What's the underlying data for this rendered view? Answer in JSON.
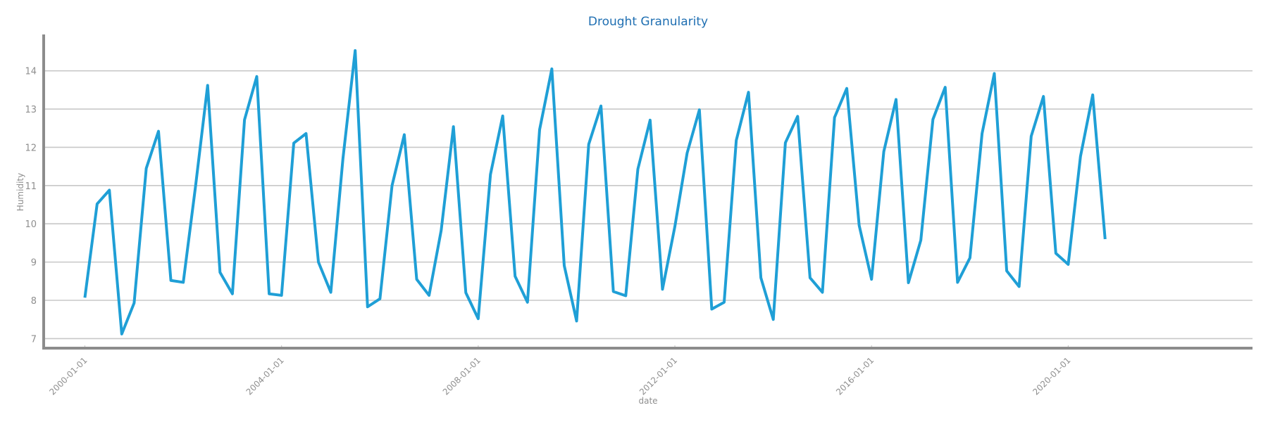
{
  "chart_data": {
    "type": "line",
    "title": "Drought Granularity",
    "xlabel": "date",
    "ylabel": "Humidity",
    "xlim": [
      "1999-03-01",
      "2023-10-01"
    ],
    "ylim": [
      6.75,
      14.95
    ],
    "y_ticks": [
      7,
      8,
      9,
      10,
      11,
      12,
      13,
      14
    ],
    "x_ticks": [
      "2000-01-01",
      "2004-01-01",
      "2008-01-01",
      "2012-01-01",
      "2016-01-01",
      "2020-01-01"
    ],
    "grid": {
      "horizontal": true,
      "vertical": false
    },
    "colors": {
      "line": "#1f9fd6",
      "grid": "#c8c8c8",
      "axis": "#8c8c8c",
      "title": "#1f6fb2",
      "text": "#8f8f8f"
    },
    "series": [
      {
        "name": "",
        "x": [
          "2000-01-01",
          "2000-04-01",
          "2000-07-01",
          "2000-10-01",
          "2001-01-01",
          "2001-04-01",
          "2001-07-01",
          "2001-10-01",
          "2002-01-01",
          "2002-04-01",
          "2002-07-01",
          "2002-10-01",
          "2003-01-01",
          "2003-04-01",
          "2003-07-01",
          "2003-10-01",
          "2004-01-01",
          "2004-04-01",
          "2004-07-01",
          "2004-10-01",
          "2005-01-01",
          "2005-04-01",
          "2005-07-01",
          "2005-10-01",
          "2006-01-01",
          "2006-04-01",
          "2006-07-01",
          "2006-10-01",
          "2007-01-01",
          "2007-04-01",
          "2007-07-01",
          "2007-10-01",
          "2008-01-01",
          "2008-04-01",
          "2008-07-01",
          "2008-10-01",
          "2009-01-01",
          "2009-04-01",
          "2009-07-01",
          "2009-10-01",
          "2010-01-01",
          "2010-04-01",
          "2010-07-01",
          "2010-10-01",
          "2011-01-01",
          "2011-04-01",
          "2011-07-01",
          "2011-10-01",
          "2012-01-01",
          "2012-04-01",
          "2012-07-01",
          "2012-10-01",
          "2013-01-01",
          "2013-04-01",
          "2013-07-01",
          "2013-10-01",
          "2014-01-01",
          "2014-04-01",
          "2014-07-01",
          "2014-10-01",
          "2015-01-01",
          "2015-04-01",
          "2015-07-01",
          "2015-10-01",
          "2016-01-01",
          "2016-04-01",
          "2016-07-01",
          "2016-10-01",
          "2017-01-01",
          "2017-04-01",
          "2017-07-01",
          "2017-10-01",
          "2018-01-01",
          "2018-04-01",
          "2018-07-01",
          "2018-10-01",
          "2019-01-01",
          "2019-04-01",
          "2019-07-01",
          "2019-10-01",
          "2020-01-01",
          "2020-04-01",
          "2020-07-01",
          "2020-10-01"
        ],
        "values": [
          8.07,
          10.52,
          10.88,
          7.12,
          7.93,
          11.45,
          12.42,
          8.52,
          8.47,
          10.95,
          13.62,
          8.73,
          8.17,
          12.72,
          13.85,
          8.17,
          8.13,
          12.11,
          12.36,
          9.0,
          8.21,
          11.7,
          14.53,
          7.83,
          8.04,
          11.0,
          12.33,
          8.55,
          8.13,
          9.83,
          12.54,
          8.2,
          7.52,
          11.29,
          12.82,
          8.63,
          7.95,
          12.46,
          14.05,
          8.91,
          7.46,
          12.08,
          13.08,
          8.23,
          8.12,
          11.43,
          12.71,
          8.29,
          9.93,
          11.85,
          12.98,
          7.77,
          7.95,
          12.18,
          13.44,
          8.59,
          7.5,
          12.12,
          12.81,
          8.59,
          8.21,
          12.78,
          13.54,
          9.96,
          8.55,
          11.89,
          13.25,
          8.46,
          9.57,
          12.73,
          13.57,
          8.47,
          9.11,
          12.36,
          13.93,
          8.77,
          8.36,
          12.29,
          13.33,
          9.23,
          8.94,
          11.76,
          13.37,
          9.6
        ]
      }
    ]
  }
}
